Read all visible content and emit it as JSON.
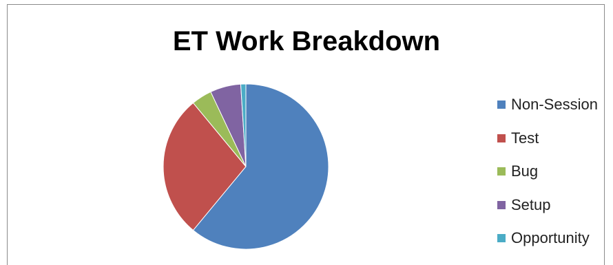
{
  "chart_data": {
    "type": "pie",
    "title": "ET Work Breakdown",
    "categories": [
      "Non-Session",
      "Test",
      "Bug",
      "Setup",
      "Opportunity"
    ],
    "values": [
      61,
      28,
      4,
      6,
      1
    ],
    "colors": [
      "#4f81bd",
      "#c0504d",
      "#9bbb59",
      "#8064a2",
      "#4bacc6"
    ],
    "legend_position": "right"
  }
}
